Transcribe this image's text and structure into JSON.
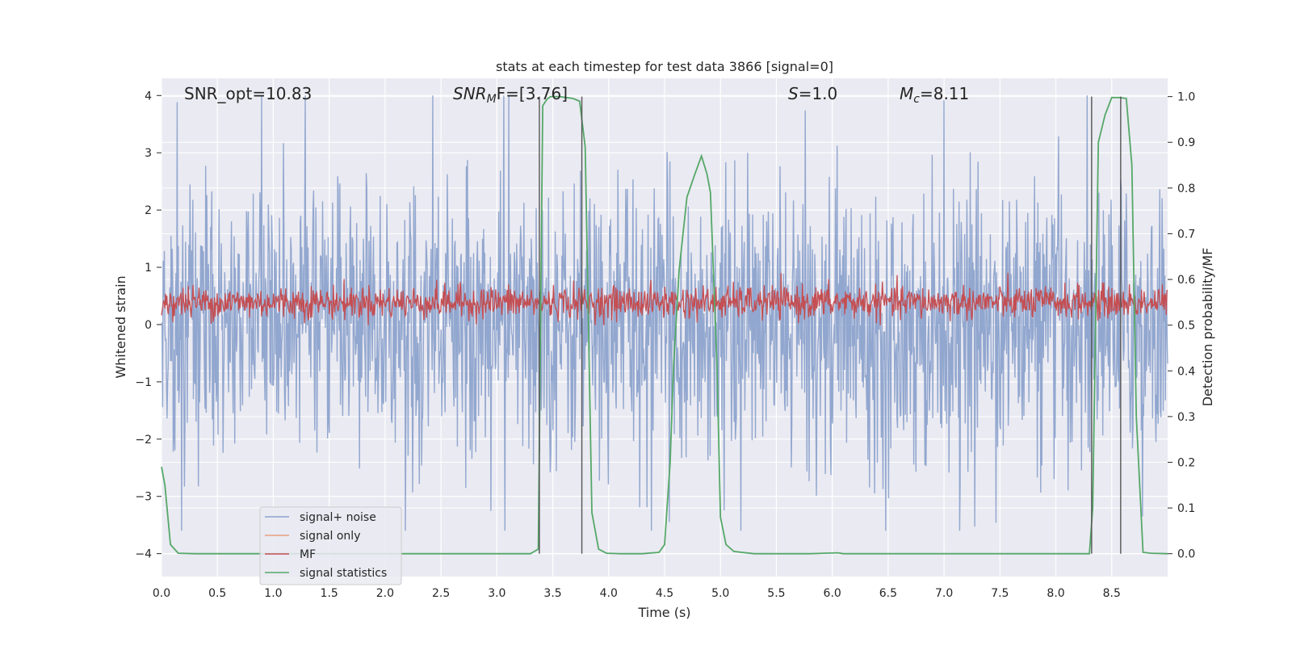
{
  "chart_data": {
    "type": "line",
    "title": "stats at each timestep for test data 3866 [signal=0]",
    "xlabel": "Time (s)",
    "ylabel_left": "Whitened strain",
    "ylabel_right": "Detection probability/MF",
    "xlim": [
      0.0,
      9.0
    ],
    "ylim_left": [
      -4.4,
      4.3
    ],
    "ylim_right": [
      -0.05,
      1.04
    ],
    "x_ticks": [
      "0.0",
      "0.5",
      "1.0",
      "1.5",
      "2.0",
      "2.5",
      "3.0",
      "3.5",
      "4.0",
      "4.5",
      "5.0",
      "5.5",
      "6.0",
      "6.5",
      "7.0",
      "7.5",
      "8.0",
      "8.5"
    ],
    "x_tick_values": [
      0.0,
      0.5,
      1.0,
      1.5,
      2.0,
      2.5,
      3.0,
      3.5,
      4.0,
      4.5,
      5.0,
      5.5,
      6.0,
      6.5,
      7.0,
      7.5,
      8.0,
      8.5
    ],
    "y_left_ticks": [
      "−4",
      "−3",
      "−2",
      "−1",
      "0",
      "1",
      "2",
      "3",
      "4"
    ],
    "y_left_tick_values": [
      -4,
      -3,
      -2,
      -1,
      0,
      1,
      2,
      3,
      4
    ],
    "y_right_ticks": [
      "0.0",
      "0.1",
      "0.2",
      "0.3",
      "0.4",
      "0.5",
      "0.6",
      "0.7",
      "0.8",
      "0.9",
      "1.0"
    ],
    "y_right_tick_values": [
      0.0,
      0.1,
      0.2,
      0.3,
      0.4,
      0.5,
      0.6,
      0.7,
      0.8,
      0.9,
      1.0
    ],
    "grid": true,
    "legend_position": "lower-left",
    "annotations": {
      "snr_opt": "SNR_opt=10.83",
      "snr_mf_base": "SNR",
      "snr_mf_sub": "M",
      "snr_mf_rest": "F=[3.76]",
      "s_italic": "S",
      "s_rest": "=1.0",
      "mc_base": "M",
      "mc_sub": "c",
      "mc_rest": "=8.11"
    },
    "vertical_lines_x": [
      3.38,
      3.76,
      8.32,
      8.58
    ],
    "series": [
      {
        "name": "signal+ noise",
        "color": "#8da3cc",
        "axis": "left",
        "style": "dense noise, approx. range -3.6 to 4.0 around 0"
      },
      {
        "name": "signal only",
        "color": "#e8a07f",
        "axis": "left",
        "values": "zero (no signal)"
      },
      {
        "name": "MF",
        "color": "#c44e52",
        "axis": "right",
        "style": "dense noise, approx. range 0.5 to 0.6"
      },
      {
        "name": "signal statistics",
        "color": "#55a868",
        "axis": "right",
        "x": [
          0.0,
          0.03,
          0.08,
          0.15,
          0.3,
          0.5,
          1.0,
          1.5,
          2.0,
          2.5,
          3.0,
          3.3,
          3.37,
          3.41,
          3.45,
          3.48,
          3.52,
          3.56,
          3.62,
          3.68,
          3.74,
          3.79,
          3.85,
          3.91,
          3.98,
          4.1,
          4.3,
          4.45,
          4.5,
          4.55,
          4.58,
          4.63,
          4.7,
          4.77,
          4.83,
          4.88,
          4.91,
          4.97,
          5.0,
          5.05,
          5.12,
          5.3,
          5.8,
          6.05,
          6.1,
          6.5,
          7.0,
          7.5,
          8.0,
          8.3,
          8.33,
          8.38,
          8.44,
          8.5,
          8.57,
          8.63,
          8.68,
          8.72,
          8.78,
          8.85,
          9.0
        ],
        "y": [
          0.19,
          0.15,
          0.02,
          0.001,
          0.0,
          0.0,
          0.0,
          0.0,
          0.0,
          0.0,
          0.0,
          0.0,
          0.01,
          0.98,
          0.995,
          1.0,
          1.0,
          1.0,
          0.998,
          0.996,
          0.99,
          0.89,
          0.09,
          0.01,
          0.001,
          0.0,
          0.0,
          0.003,
          0.02,
          0.2,
          0.41,
          0.62,
          0.78,
          0.83,
          0.87,
          0.83,
          0.79,
          0.4,
          0.08,
          0.02,
          0.005,
          0.0,
          0.0,
          0.002,
          0.0,
          0.0,
          0.0,
          0.0,
          0.0,
          0.0,
          0.1,
          0.9,
          0.96,
          0.998,
          0.998,
          0.996,
          0.85,
          0.3,
          0.003,
          0.001,
          0.0
        ]
      }
    ]
  }
}
